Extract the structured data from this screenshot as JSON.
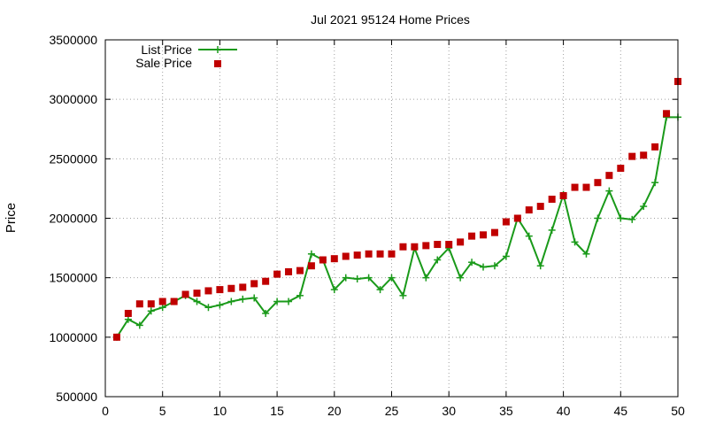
{
  "chart_data": {
    "type": "line",
    "title": "Jul 2021 95124 Home Prices",
    "xlabel": "",
    "ylabel": "Price",
    "xlim": [
      0,
      50
    ],
    "ylim": [
      500000,
      3500000
    ],
    "x_ticks": [
      "0",
      "5",
      "10",
      "15",
      "20",
      "25",
      "30",
      "35",
      "40",
      "45",
      "50"
    ],
    "y_ticks": [
      "500000",
      "1000000",
      "1500000",
      "2000000",
      "2500000",
      "3000000",
      "3500000"
    ],
    "grid": true,
    "legend_position": "top-left",
    "x": [
      1,
      2,
      3,
      4,
      5,
      6,
      7,
      8,
      9,
      10,
      11,
      12,
      13,
      14,
      15,
      16,
      17,
      18,
      19,
      20,
      21,
      22,
      23,
      24,
      25,
      26,
      27,
      28,
      29,
      30,
      31,
      32,
      33,
      34,
      35,
      36,
      37,
      38,
      39,
      40,
      41,
      42,
      43,
      44,
      45,
      46,
      47,
      48,
      49,
      50
    ],
    "series": [
      {
        "name": "List Price",
        "style": "line-points",
        "color": "#1a9a1a",
        "values": [
          1000000,
          1150000,
          1100000,
          1220000,
          1250000,
          1300000,
          1350000,
          1300000,
          1250000,
          1270000,
          1300000,
          1320000,
          1330000,
          1200000,
          1300000,
          1300000,
          1350000,
          1700000,
          1650000,
          1400000,
          1500000,
          1490000,
          1500000,
          1400000,
          1500000,
          1350000,
          1750000,
          1500000,
          1650000,
          1750000,
          1500000,
          1630000,
          1590000,
          1600000,
          1680000,
          2000000,
          1850000,
          1600000,
          1900000,
          2200000,
          1800000,
          1700000,
          2000000,
          2230000,
          2000000,
          1990000,
          2100000,
          2300000,
          2850000,
          2850000
        ]
      },
      {
        "name": "Sale Price",
        "style": "points",
        "color": "#c00000",
        "values": [
          1000000,
          1200000,
          1280000,
          1280000,
          1300000,
          1300000,
          1360000,
          1370000,
          1390000,
          1400000,
          1410000,
          1420000,
          1450000,
          1470000,
          1530000,
          1550000,
          1560000,
          1600000,
          1650000,
          1660000,
          1680000,
          1690000,
          1700000,
          1700000,
          1700000,
          1760000,
          1760000,
          1770000,
          1780000,
          1780000,
          1800000,
          1850000,
          1860000,
          1880000,
          1970000,
          2000000,
          2070000,
          2100000,
          2160000,
          2190000,
          2260000,
          2260000,
          2300000,
          2360000,
          2420000,
          2520000,
          2530000,
          2600000,
          2880000,
          3150000
        ]
      }
    ]
  }
}
